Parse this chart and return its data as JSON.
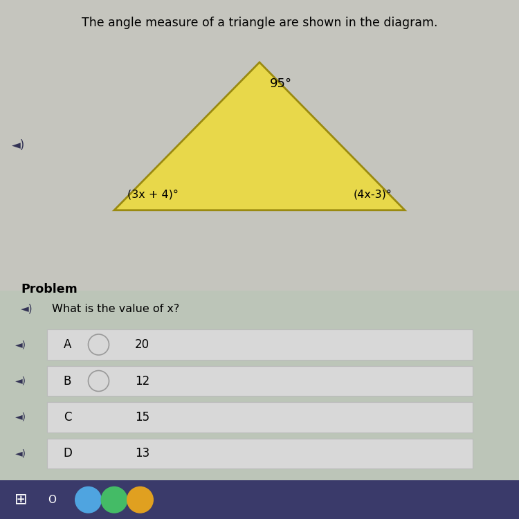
{
  "title": "The angle measure of a triangle are shown in the diagram.",
  "title_fontsize": 12.5,
  "bg_color": "#bebebe",
  "triangle_fill": "#e8d84a",
  "triangle_edge": "#9a8a10",
  "tri_vx": [
    0.22,
    0.78,
    0.5
  ],
  "tri_vy": [
    0.595,
    0.595,
    0.88
  ],
  "angle_top": "95°",
  "angle_bottom_left": "(3x + 4)°",
  "angle_bottom_right": "(4x-3)°",
  "problem_label": "Problem",
  "problem_question": "What is the value of x?",
  "choices": [
    {
      "letter": "A",
      "value": "20",
      "has_circle": true
    },
    {
      "letter": "B",
      "value": "12",
      "has_circle": true
    },
    {
      "letter": "C",
      "value": "15",
      "has_circle": false
    },
    {
      "letter": "D",
      "value": "13",
      "has_circle": false
    }
  ],
  "choice_bg": "#d8d8d8",
  "choice_border": "#bbbbbb",
  "panel_bg_upper": "#c8c8c0",
  "panel_bg_lower": "#c0c8b8",
  "taskbar_color": "#3a3a6a",
  "taskbar_icon_colors": [
    "#4fa4e0",
    "#44bb66",
    "#e0a020"
  ]
}
